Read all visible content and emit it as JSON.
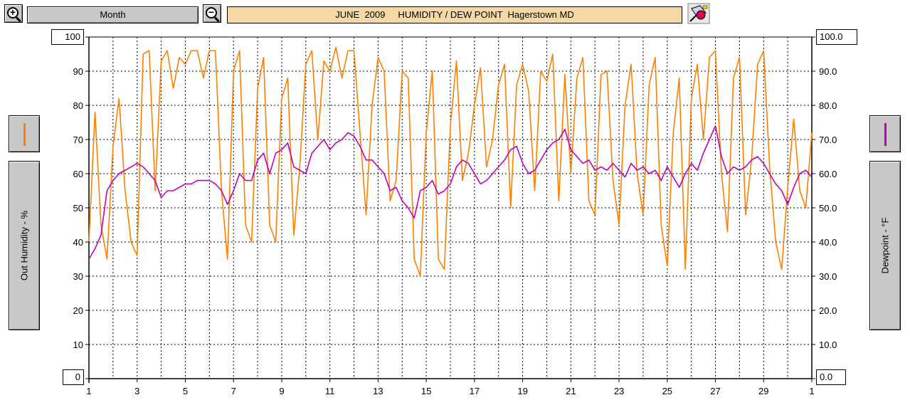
{
  "toolbar": {
    "zoom_in_symbol": "+",
    "zoom_out_symbol": "−",
    "period_label": "Month",
    "title": "JUNE  2009     HUMIDITY / DEW POINT  Hagerstown MD",
    "print_icon": "printer-icon"
  },
  "left_axis": {
    "label": "Out Humidity - %",
    "max_box": "100",
    "min_box": "0",
    "swatch_color": "#ff8000"
  },
  "right_axis": {
    "label": "Dewpoint - °F",
    "max_box": "100.0",
    "min_box": "0.0",
    "swatch_color": "#c000c0"
  },
  "chart_data": {
    "type": "line",
    "xlabel": "",
    "ylabel": "Out Humidity - %",
    "y2label": "Dewpoint - °F",
    "x_ticks": [
      "1",
      "3",
      "5",
      "7",
      "9",
      "11",
      "13",
      "15",
      "17",
      "19",
      "21",
      "23",
      "25",
      "27",
      "29",
      "1"
    ],
    "ylim": [
      0,
      100
    ],
    "y2lim": [
      0,
      100
    ],
    "y_ticks": [
      "0",
      "10",
      "20",
      "30",
      "40",
      "50",
      "60",
      "70",
      "80",
      "90",
      "100"
    ],
    "y2_ticks": [
      "0.0",
      "10.0",
      "20.0",
      "30.0",
      "40.0",
      "50.0",
      "60.0",
      "70.0",
      "80.0",
      "90.0",
      "100.0"
    ],
    "grid": true,
    "x": [
      1,
      1.25,
      1.5,
      1.75,
      2,
      2.25,
      2.5,
      2.75,
      3,
      3.25,
      3.5,
      3.75,
      4,
      4.25,
      4.5,
      4.75,
      5,
      5.25,
      5.5,
      5.75,
      6,
      6.25,
      6.5,
      6.75,
      7,
      7.25,
      7.5,
      7.75,
      8,
      8.25,
      8.5,
      8.75,
      9,
      9.25,
      9.5,
      9.75,
      10,
      10.25,
      10.5,
      10.75,
      11,
      11.25,
      11.5,
      11.75,
      12,
      12.25,
      12.5,
      12.75,
      13,
      13.25,
      13.5,
      13.75,
      14,
      14.25,
      14.5,
      14.75,
      15,
      15.25,
      15.5,
      15.75,
      16,
      16.25,
      16.5,
      16.75,
      17,
      17.25,
      17.5,
      17.75,
      18,
      18.25,
      18.5,
      18.75,
      19,
      19.25,
      19.5,
      19.75,
      20,
      20.25,
      20.5,
      20.75,
      21,
      21.25,
      21.5,
      21.75,
      22,
      22.25,
      22.5,
      22.75,
      23,
      23.25,
      23.5,
      23.75,
      24,
      24.25,
      24.5,
      24.75,
      25,
      25.25,
      25.5,
      25.75,
      26,
      26.25,
      26.5,
      26.75,
      27,
      27.25,
      27.5,
      27.75,
      28,
      28.25,
      28.5,
      28.75,
      29,
      29.25,
      29.5,
      29.75,
      30,
      30.25,
      30.5,
      30.75,
      31
    ],
    "series": [
      {
        "name": "",
        "axis": "left",
        "color": "#ff8000",
        "values": [
          40,
          78,
          45,
          35,
          68,
          82,
          55,
          40,
          36,
          95,
          96,
          55,
          93,
          96,
          85,
          94,
          92,
          96,
          96,
          88,
          96,
          96,
          55,
          35,
          90,
          96,
          45,
          40,
          85,
          94,
          45,
          40,
          82,
          88,
          42,
          62,
          92,
          96,
          70,
          93,
          90,
          97,
          88,
          96,
          96,
          72,
          48,
          80,
          94,
          90,
          52,
          58,
          90,
          88,
          35,
          30,
          72,
          90,
          35,
          32,
          74,
          93,
          58,
          66,
          80,
          91,
          62,
          70,
          86,
          92,
          50,
          86,
          92,
          84,
          55,
          90,
          87,
          95,
          52,
          89,
          60,
          88,
          94,
          52,
          48,
          89,
          90,
          58,
          45,
          80,
          92,
          60,
          48,
          86,
          94,
          45,
          33,
          72,
          88,
          32,
          82,
          92,
          70,
          94,
          96,
          60,
          43,
          88,
          94,
          48,
          64,
          92,
          96,
          62,
          40,
          32,
          56,
          76,
          55,
          50,
          72
        ],
        "labels_shown": false
      },
      {
        "name": "",
        "axis": "right",
        "color": "#c000c0",
        "values": [
          35,
          38,
          42,
          55,
          58,
          60,
          61,
          62,
          63,
          62,
          60,
          58,
          53,
          55,
          55,
          56,
          57,
          57,
          58,
          58,
          58,
          57,
          55,
          51,
          55,
          60,
          58,
          58,
          64,
          66,
          60,
          66,
          67,
          69,
          62,
          61,
          60,
          66,
          68,
          70,
          67,
          69,
          70,
          72,
          71,
          68,
          64,
          64,
          62,
          60,
          55,
          56,
          52,
          50,
          47,
          55,
          56,
          58,
          54,
          55,
          57,
          62,
          64,
          63,
          60,
          57,
          58,
          60,
          62,
          64,
          67,
          68,
          63,
          60,
          61,
          64,
          67,
          69,
          70,
          73,
          67,
          65,
          63,
          64,
          61,
          62,
          61,
          63,
          61,
          59,
          63,
          61,
          62,
          60,
          61,
          58,
          62,
          59,
          56,
          60,
          63,
          61,
          66,
          70,
          74,
          65,
          60,
          62,
          61,
          62,
          64,
          65,
          63,
          60,
          57,
          55,
          51,
          56,
          60,
          61,
          59
        ],
        "labels_shown": false
      }
    ]
  }
}
